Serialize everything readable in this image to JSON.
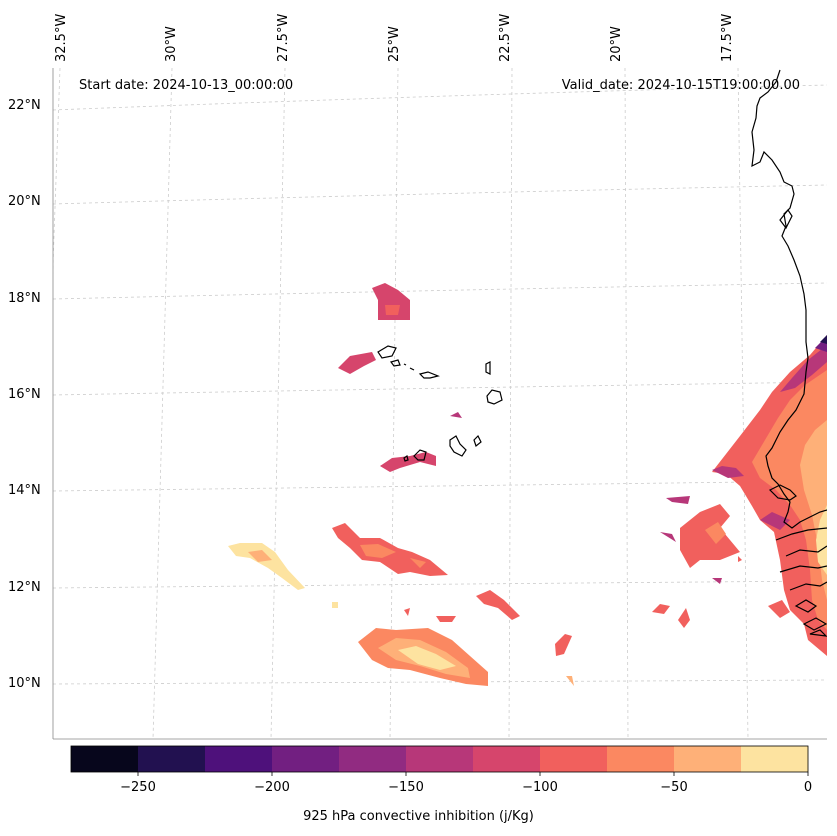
{
  "header": {
    "start_date": "Start date: 2024-10-13_00:00:00",
    "valid_date": "Valid_date: 2024-10-15T19:00:00.00"
  },
  "longitude_labels": [
    "32.5°W",
    "30°W",
    "27.5°W",
    "25°W",
    "22.5°W",
    "20°W",
    "17.5°W"
  ],
  "latitude_labels": [
    "22°N",
    "20°N",
    "18°N",
    "16°N",
    "14°N",
    "12°N",
    "10°N"
  ],
  "colorbar": {
    "label": "925 hPa convective inhibition (j/Kg)",
    "tick_labels": [
      "−250",
      "−200",
      "−150",
      "−100",
      "−50",
      "0"
    ],
    "levels": [
      -275,
      -250,
      -225,
      -200,
      -175,
      -150,
      -125,
      -100,
      -75,
      -50,
      -25,
      0
    ],
    "colors": [
      "#07061c",
      "#221150",
      "#4e117b",
      "#721f81",
      "#912b81",
      "#b73779",
      "#d6456c",
      "#f1605d",
      "#fb8861",
      "#feb078",
      "#fde3a0"
    ]
  }
}
